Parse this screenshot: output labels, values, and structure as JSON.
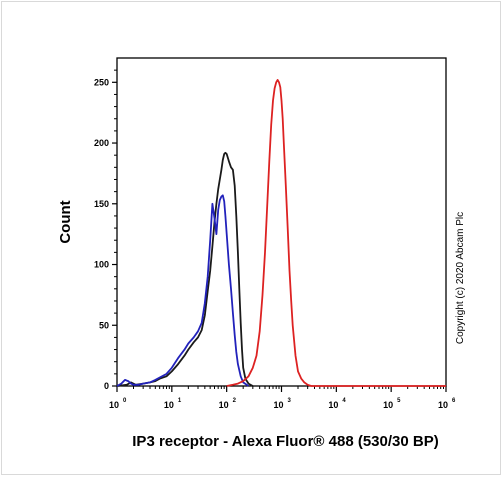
{
  "chart_data": {
    "type": "line",
    "title": "",
    "xlabel": "IP3 receptor - Alexa Fluor® 488 (530/30 BP)",
    "ylabel": "Count",
    "x_scale": "log",
    "xlim": [
      1,
      1000000
    ],
    "ylim": [
      0,
      270
    ],
    "x_ticks": [
      {
        "base": "10",
        "exp": "0"
      },
      {
        "base": "10",
        "exp": "1"
      },
      {
        "base": "10",
        "exp": "2"
      },
      {
        "base": "10",
        "exp": "3"
      },
      {
        "base": "10",
        "exp": "4"
      },
      {
        "base": "10",
        "exp": "5"
      },
      {
        "base": "10",
        "exp": "6"
      }
    ],
    "y_ticks": [
      "0",
      "50",
      "100",
      "150",
      "200",
      "250"
    ],
    "y_tick_values": [
      0,
      50,
      100,
      150,
      200,
      250
    ],
    "annotation": "Copyright (c) 2020 Abcam Plc",
    "series": [
      {
        "color": "#1a1a1a",
        "x": [
          1,
          1.5,
          1.8,
          2.2,
          3,
          4,
          5,
          6,
          8,
          10,
          13,
          17,
          20,
          25,
          30,
          35,
          40,
          45,
          50,
          55,
          60,
          65,
          70,
          75,
          80,
          85,
          90,
          95,
          100,
          110,
          120,
          130,
          140,
          150,
          160,
          170,
          180,
          190,
          200,
          220,
          250,
          300
        ],
        "y": [
          0,
          1,
          3,
          1,
          2,
          3,
          4,
          6,
          8,
          12,
          18,
          25,
          30,
          36,
          40,
          46,
          58,
          78,
          95,
          115,
          135,
          150,
          162,
          170,
          178,
          186,
          191,
          192,
          191,
          185,
          180,
          178,
          165,
          140,
          110,
          80,
          52,
          30,
          15,
          6,
          2,
          0
        ]
      },
      {
        "color": "#2222bb",
        "x": [
          1,
          1.2,
          1.4,
          1.6,
          1.8,
          2,
          2.5,
          3,
          4,
          5,
          6,
          8,
          10,
          13,
          17,
          20,
          25,
          30,
          35,
          40,
          45,
          50,
          55,
          60,
          65,
          70,
          75,
          80,
          85,
          90,
          95,
          100,
          110,
          120,
          130,
          140,
          150,
          160,
          180,
          200,
          250
        ],
        "y": [
          0,
          2,
          5,
          4,
          2,
          1,
          1,
          2,
          3,
          5,
          7,
          10,
          15,
          23,
          30,
          35,
          40,
          45,
          52,
          68,
          90,
          120,
          150,
          138,
          125,
          145,
          153,
          156,
          157,
          152,
          140,
          125,
          100,
          80,
          60,
          42,
          28,
          18,
          8,
          3,
          0
        ]
      },
      {
        "color": "#dd2222",
        "x": [
          100,
          130,
          160,
          200,
          250,
          300,
          350,
          400,
          450,
          500,
          550,
          600,
          650,
          700,
          750,
          800,
          850,
          900,
          950,
          1000,
          1050,
          1100,
          1200,
          1300,
          1400,
          1500,
          1600,
          1800,
          2000,
          2300,
          2600,
          3000,
          3500,
          4000,
          5000,
          7000,
          10000,
          100000,
          1000000
        ],
        "y": [
          0,
          1,
          2,
          4,
          8,
          15,
          25,
          45,
          75,
          110,
          150,
          185,
          215,
          235,
          245,
          250,
          252,
          250,
          246,
          235,
          220,
          200,
          165,
          130,
          95,
          70,
          50,
          25,
          12,
          6,
          3,
          1,
          0,
          0,
          0,
          0,
          0,
          0,
          0
        ]
      }
    ]
  }
}
